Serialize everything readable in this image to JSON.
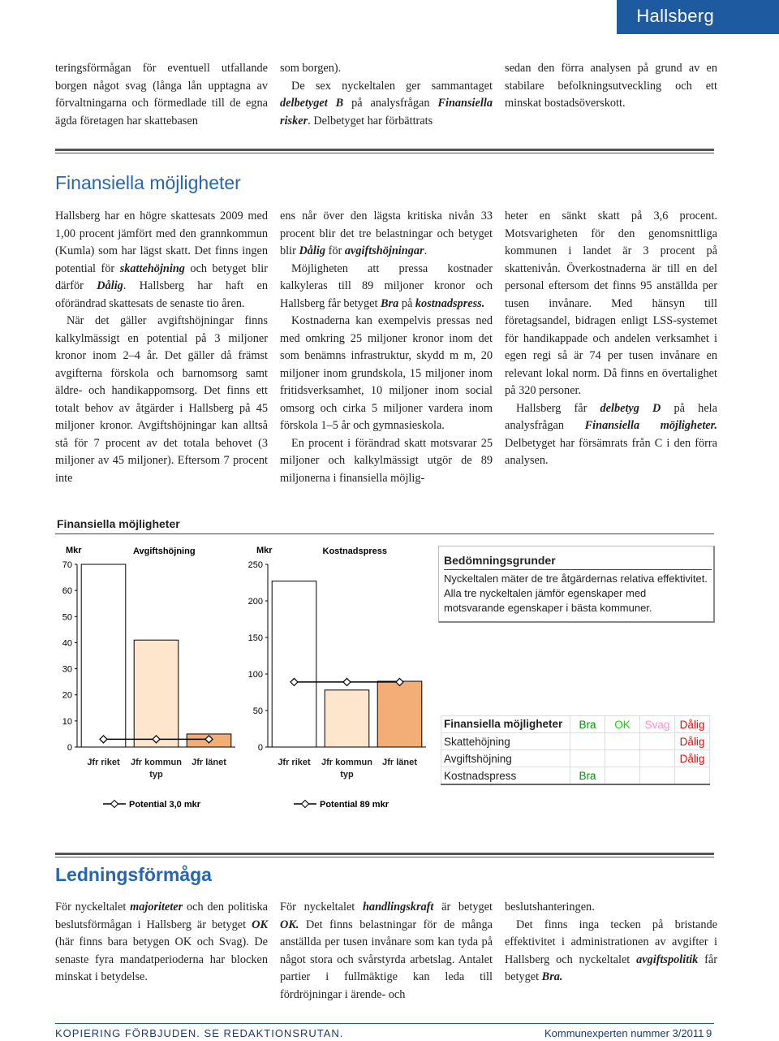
{
  "header": {
    "title": "Hallsberg"
  },
  "intro": {
    "columns": [
      [
        [
          "teringsförmågan för eventuell utfallande borgen något svag (långa lån upptagna av förvaltningarna och förmedlade till de egna ägda företagen har skattebasen"
        ]
      ],
      [
        [
          "som borgen)."
        ],
        [
          "De sex nyckeltalen ger sammantaget ",
          "delbetyget B",
          " på analysfrågan ",
          "Finansiella risker",
          ". Delbetyget har förbättrats"
        ]
      ],
      [
        [
          "sedan den förra analysen på grund av en stabilare befolkningsutveckling och ett minskat bostadsöverskott."
        ]
      ]
    ]
  },
  "section1": {
    "heading": "Finansiella möjligheter",
    "columns": [
      [
        [
          "Hallsberg har en högre skattesats 2009 med 1,00 procent jämfört med den grannkommun (Kumla) som har lägst skatt. Det finns ingen potential för ",
          "skattehöjning",
          " och betyget blir därför ",
          "Dålig",
          ". Hallsberg har haft en oförändrad skattesats de senaste tio åren."
        ],
        [
          "När det gäller avgiftshöjningar finns kalkylmässigt en potential på 3 miljoner kronor inom 2–4 år. Det gäller då främst avgifterna förskola och barnomsorg samt äldre- och handikappomsorg. Det finns ett totalt behov av åtgärder i Hallsberg på 45 miljoner kronor. Avgiftshöjningar kan alltså stå för 7 procent av det totala behovet (3 miljoner av 45 miljoner). Eftersom 7 procent inte"
        ]
      ],
      [
        [
          "ens når över den lägsta kritiska nivån 33 procent blir det tre belastningar och betyget blir ",
          "Dålig",
          " för ",
          "avgiftshöjningar",
          "."
        ],
        [
          "Möjligheten att pressa kostnader kalkyleras till 89 miljoner kronor och Hallsberg får betyget ",
          "Bra",
          " på ",
          "kostnadspress."
        ],
        [
          "Kostnaderna kan exempelvis pressas ned med omkring 25 miljoner kronor inom det som benämns infrastruktur, skydd m m, 20 miljoner inom grundskola, 15 miljoner inom fritidsverksamhet, 10 miljoner inom social omsorg och cirka 5 miljoner vardera inom förskola 1–5 år och gymnasieskola."
        ],
        [
          "En procent i förändrad skatt motsvarar 25 miljoner och kalkylmässigt utgör de 89 miljonerna i finansiella möjlig-"
        ]
      ],
      [
        [
          "heter en sänkt skatt på 3,6 procent. Motsvarigheten för den genomsnittliga kommunen i landet är 3 procent på skattenivån. Överkostnaderna är till en del personal eftersom det finns 95 anställda per tusen invånare. Med hänsyn till företagsandel, bidragen enligt LSS-systemet för handikappade och andelen verksamhet i egen regi så är 74 per tusen invånare en relevant lokal norm. Då finns en övertalighet på 320 personer."
        ],
        [
          "Hallsberg får ",
          "delbetyg D",
          " på hela analysfrågan ",
          "Finansiella möjligheter.",
          " Delbetyget har försämrats från C i den förra analysen."
        ]
      ]
    ]
  },
  "figure_title": "Finansiella möjligheter",
  "chart_data": [
    {
      "type": "bar",
      "title": "Avgiftshöjning",
      "y_label": "Mkr",
      "categories": [
        "Jfr riket",
        "Jfr kommun typ",
        "Jfr länet"
      ],
      "values": [
        70,
        41,
        5
      ],
      "colors": [
        "#ffffff",
        "#fde6cc",
        "#f3ad76"
      ],
      "series": [
        {
          "name": "Potential 3,0 mkr",
          "color": "#000000",
          "values": [
            3,
            3,
            3
          ]
        }
      ],
      "ylim": [
        0,
        70
      ],
      "yticks": [
        0,
        10,
        20,
        30,
        40,
        50,
        60,
        70
      ]
    },
    {
      "type": "bar",
      "title": "Kostnadspress",
      "y_label": "Mkr",
      "categories": [
        "Jfr riket",
        "Jfr kommun typ",
        "Jfr länet"
      ],
      "values": [
        227,
        78,
        90
      ],
      "colors": [
        "#ffffff",
        "#fde6cc",
        "#f3ad76"
      ],
      "series": [
        {
          "name": "Potential 89 mkr",
          "color": "#000000",
          "values": [
            89,
            89,
            89
          ]
        }
      ],
      "ylim": [
        0,
        250
      ],
      "yticks": [
        0,
        50,
        100,
        150,
        200,
        250
      ]
    }
  ],
  "criteria": {
    "title": "Bedömningsgrunder",
    "text": "Nyckeltalen mäter de tre åtgärdernas relativa effektivitet. Alla tre nyckeltalen jämför egenskaper med motsvarande egenskaper i bästa kommuner."
  },
  "ratings": {
    "columns": [
      "Finansiella möjligheter",
      "Bra",
      "OK",
      "Svag",
      "Dålig"
    ],
    "rows": [
      [
        "Skattehöjning",
        null,
        null,
        null,
        "Dålig"
      ],
      [
        "Avgiftshöjning",
        null,
        null,
        null,
        "Dålig"
      ],
      [
        "Kostnadspress",
        "Bra",
        null,
        null,
        null
      ]
    ]
  },
  "section2": {
    "heading": "Ledningsförmåga",
    "columns": [
      [
        [
          "För nyckeltalet ",
          "majoriteter",
          " och den politiska beslutsförmågan i Hallsberg är betyget ",
          "OK",
          " (här finns bara betygen OK och Svag). De senaste fyra mandatperioderna har blocken minskat i betydelse."
        ]
      ],
      [
        [
          "För nyckeltalet ",
          "handlingskraft",
          " är betyget ",
          "OK.",
          " Det finns belastningar för de många anställda per tusen invånare som kan tyda på något stora och svårstyrda arbetslag. Antalet partier i fullmäktige kan leda till fördröjningar i ärende- och"
        ]
      ],
      [
        [
          "beslutshanteringen."
        ],
        [
          "Det finns inga tecken på bristande effektivitet i administrationen av avgifter i Hallsberg och nyckeltalet ",
          "avgiftspolitik",
          " får betyget ",
          "Bra."
        ]
      ]
    ]
  },
  "footer": {
    "left": "KOPIERING FÖRBJUDEN. SE REDAKTIONSRUTAN.",
    "publication": "Kommunexperten nummer 3/2011",
    "page": "9"
  }
}
